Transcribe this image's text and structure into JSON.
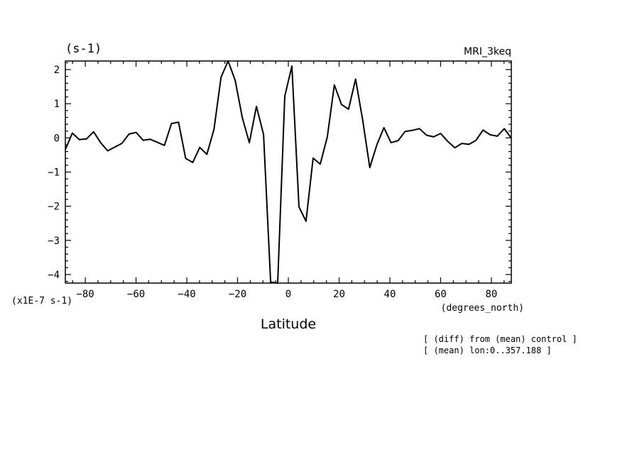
{
  "chart_data": {
    "type": "line",
    "unit_label": "(s-1)",
    "dataset_label": "MRI_3keq",
    "scale_label": "(x1E-7 s-1)",
    "xunit_label": "(degrees_north)",
    "xlabel": "Latitude",
    "ylabel": "",
    "xlim": [
      -87.86,
      87.86
    ],
    "ylim": [
      -4.25,
      2.25
    ],
    "xticks_major": [
      -80,
      -60,
      -40,
      -20,
      0,
      20,
      40,
      60,
      80
    ],
    "yticks_major": [
      -4,
      -3,
      -2,
      -1,
      0,
      1,
      2
    ],
    "grid": false,
    "notes": [
      "[ (diff) from (mean) control ]",
      "[ (mean) lon:0..357.188 ]"
    ],
    "series": [
      {
        "x": [
          -87.86,
          -85.1,
          -82.31,
          -79.52,
          -76.73,
          -73.95,
          -71.16,
          -68.37,
          -65.58,
          -62.79,
          -60.0,
          -57.21,
          -54.42,
          -51.63,
          -48.84,
          -46.04,
          -43.25,
          -40.46,
          -37.67,
          -34.88,
          -32.09,
          -29.3,
          -26.51,
          -23.72,
          -20.93,
          -18.14,
          -15.35,
          -12.56,
          -9.77,
          -6.98,
          -4.19,
          -1.4,
          1.4,
          4.19,
          6.98,
          9.77,
          12.56,
          15.35,
          18.14,
          20.93,
          23.72,
          26.51,
          29.3,
          32.09,
          34.88,
          37.67,
          40.46,
          43.25,
          46.04,
          48.84,
          51.63,
          54.42,
          57.21,
          60.0,
          62.79,
          65.58,
          68.37,
          71.16,
          73.95,
          76.73,
          79.52,
          82.31,
          85.1,
          87.86
        ],
        "values": [
          -0.34,
          0.14,
          -0.05,
          -0.03,
          0.18,
          -0.14,
          -0.38,
          -0.27,
          -0.16,
          0.11,
          0.16,
          -0.07,
          -0.04,
          -0.13,
          -0.22,
          0.42,
          0.46,
          -0.6,
          -0.72,
          -0.28,
          -0.48,
          0.25,
          1.78,
          2.25,
          1.68,
          0.59,
          -0.14,
          0.92,
          0.1,
          -4.22,
          -4.25,
          1.22,
          2.1,
          -2.02,
          -2.44,
          -0.59,
          -0.77,
          0.03,
          1.55,
          0.98,
          0.84,
          1.72,
          0.52,
          -0.87,
          -0.2,
          0.3,
          -0.14,
          -0.08,
          0.19,
          0.22,
          0.27,
          0.08,
          0.03,
          0.13,
          -0.1,
          -0.29,
          -0.16,
          -0.19,
          -0.07,
          0.23,
          0.09,
          0.05,
          0.27,
          -0.01
        ]
      }
    ]
  }
}
